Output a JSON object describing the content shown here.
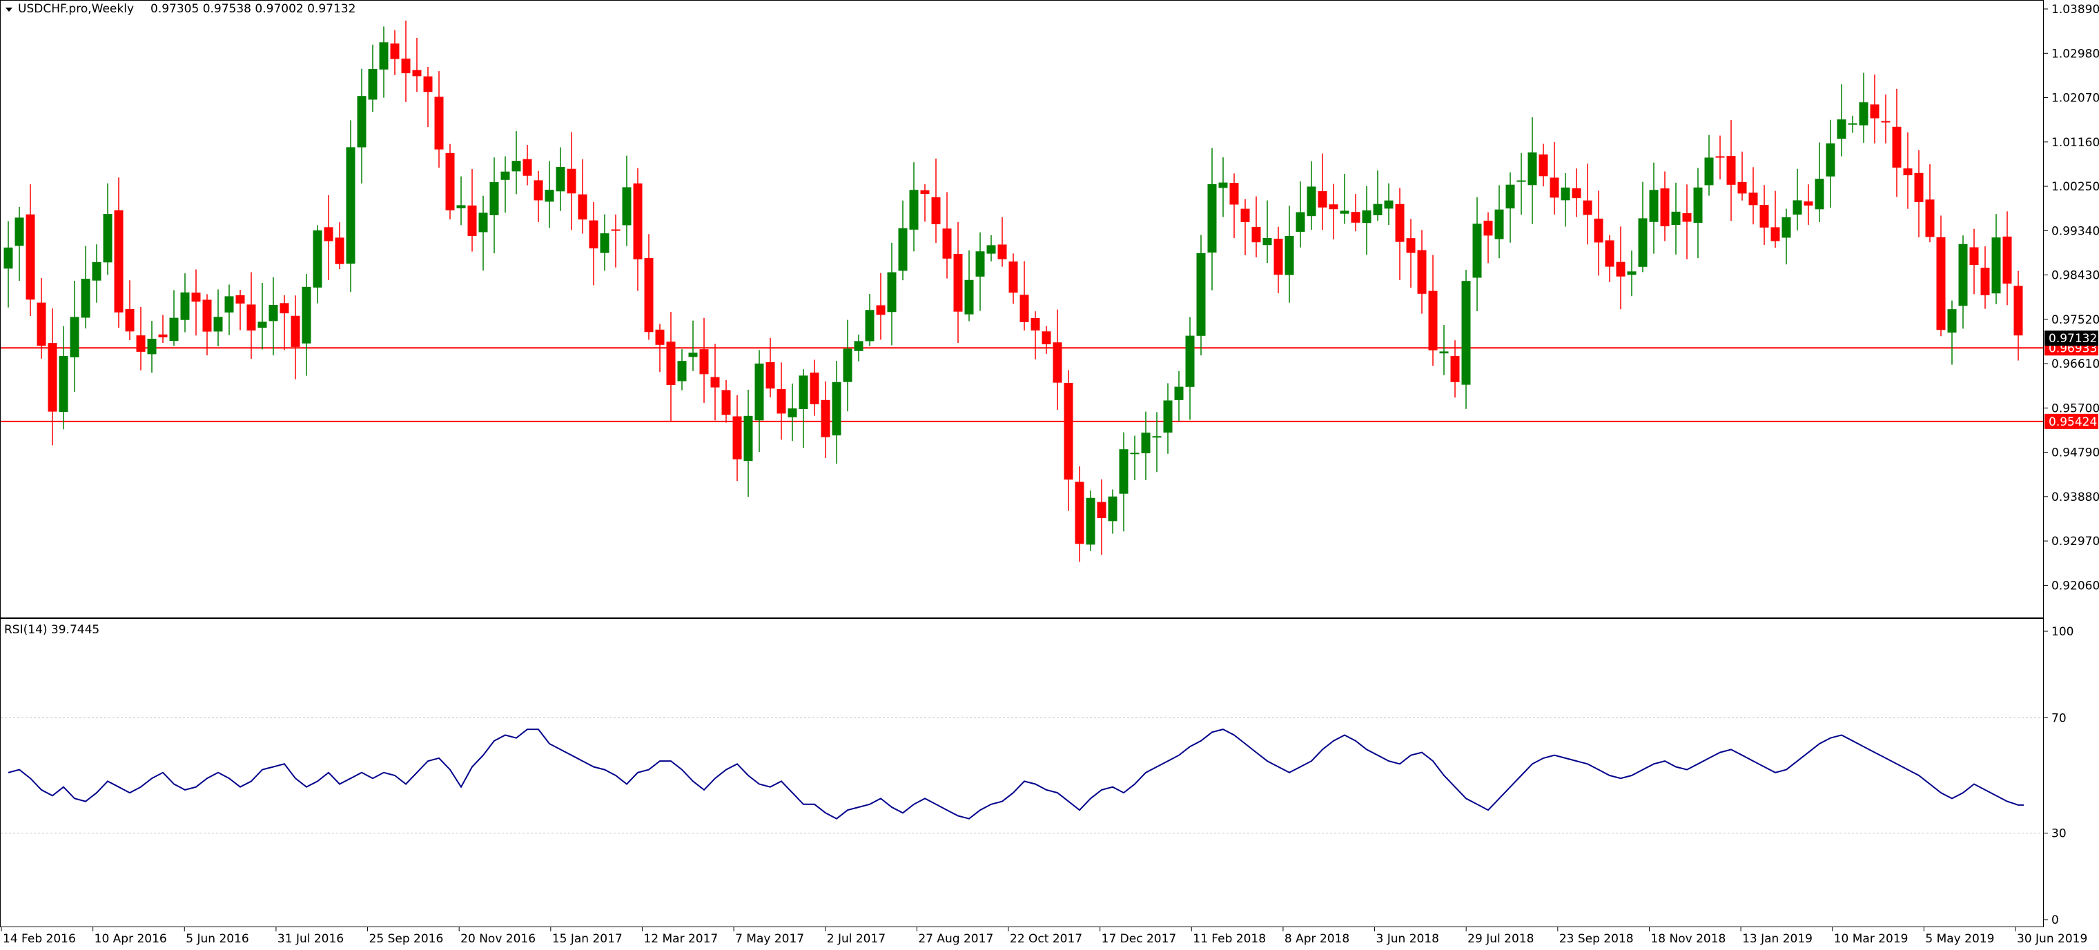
{
  "chart_data": [
    {
      "type": "candlestick",
      "header": {
        "symbol_label": "USDCHF.pro,Weekly",
        "ohlc_label": "0.97305 0.97538 0.97002 0.97132"
      },
      "ylim": [
        0.914,
        1.0406
      ],
      "y_ticks": [
        "1.03890",
        "1.02980",
        "1.02070",
        "1.01160",
        "1.00250",
        "0.99340",
        "0.98430",
        "0.97520",
        "0.96610",
        "0.95700",
        "0.94790",
        "0.93880",
        "0.92970",
        "0.92060"
      ],
      "x_ticks": [
        "14 Feb 2016",
        "10 Apr 2016",
        "5 Jun 2016",
        "31 Jul 2016",
        "25 Sep 2016",
        "20 Nov 2016",
        "15 Jan 2017",
        "12 Mar 2017",
        "7 May 2017",
        "2 Jul 2017",
        "27 Aug 2017",
        "22 Oct 2017",
        "17 Dec 2017",
        "11 Feb 2018",
        "8 Apr 2018",
        "3 Jun 2018",
        "29 Jul 2018",
        "23 Sep 2018",
        "18 Nov 2018",
        "13 Jan 2019",
        "10 Mar 2019",
        "5 May 2019",
        "30 Jun 2019"
      ],
      "levels": [
        {
          "label": "0.96933",
          "value": 0.96933,
          "color": "#ff0000"
        },
        {
          "label": "0.95424",
          "value": 0.95424,
          "color": "#ff0000"
        }
      ],
      "current_price": {
        "label": "0.97132",
        "value": 0.97132
      },
      "colors": {
        "bull": "#008000",
        "bear": "#ff0000",
        "wick_bull": "#008000",
        "wick_bear": "#ff0000"
      },
      "close_points": [
        [
          0,
          0.989
        ],
        [
          2,
          0.995
        ],
        [
          4,
          0.978
        ],
        [
          8,
          0.958
        ],
        [
          10,
          0.97
        ],
        [
          14,
          0.984
        ],
        [
          18,
          0.994
        ],
        [
          20,
          0.977
        ],
        [
          24,
          0.968
        ],
        [
          28,
          0.972
        ],
        [
          32,
          0.982
        ],
        [
          36,
          0.972
        ],
        [
          40,
          0.98
        ],
        [
          44,
          0.972
        ],
        [
          48,
          0.98
        ],
        [
          52,
          0.972
        ],
        [
          56,
          0.994
        ],
        [
          60,
          0.986
        ],
        [
          62,
          1.012
        ],
        [
          64,
          1.02
        ],
        [
          68,
          1.031
        ],
        [
          72,
          1.028
        ],
        [
          76,
          1.022
        ],
        [
          80,
          1.0
        ],
        [
          84,
          0.994
        ],
        [
          88,
          1.005
        ],
        [
          92,
          1.009
        ],
        [
          96,
          0.998
        ],
        [
          100,
          1.006
        ],
        [
          104,
          0.995
        ],
        [
          108,
          0.99
        ],
        [
          112,
          1.001
        ],
        [
          116,
          0.972
        ],
        [
          120,
          0.963
        ],
        [
          124,
          0.97
        ],
        [
          128,
          0.96
        ],
        [
          132,
          0.948
        ],
        [
          136,
          0.968
        ],
        [
          140,
          0.954
        ],
        [
          144,
          0.962
        ],
        [
          148,
          0.95
        ],
        [
          152,
          0.969
        ],
        [
          156,
          0.975
        ],
        [
          160,
          0.982
        ],
        [
          164,
          1.0
        ],
        [
          168,
          0.997
        ],
        [
          170,
          0.988
        ],
        [
          172,
          0.976
        ],
        [
          176,
          0.992
        ],
        [
          180,
          0.987
        ],
        [
          184,
          0.977
        ],
        [
          188,
          0.969
        ],
        [
          190,
          0.964
        ],
        [
          192,
          0.944
        ],
        [
          194,
          0.932
        ],
        [
          196,
          0.939
        ],
        [
          198,
          0.932
        ],
        [
          200,
          0.937
        ],
        [
          202,
          0.946
        ],
        [
          206,
          0.952
        ],
        [
          208,
          0.951
        ],
        [
          210,
          0.957
        ],
        [
          214,
          0.97
        ],
        [
          216,
          0.986
        ],
        [
          218,
          1.001
        ],
        [
          222,
          1.0
        ],
        [
          226,
          0.993
        ],
        [
          230,
          0.986
        ],
        [
          232,
          0.991
        ],
        [
          236,
          1.001
        ],
        [
          240,
          0.996
        ],
        [
          244,
          0.998
        ],
        [
          250,
          0.999
        ],
        [
          256,
          0.983
        ],
        [
          258,
          0.97
        ],
        [
          260,
          0.968
        ],
        [
          262,
          0.962
        ],
        [
          264,
          0.981
        ],
        [
          266,
          0.993
        ],
        [
          270,
          0.996
        ],
        [
          274,
          1.005
        ],
        [
          276,
          1.008
        ],
        [
          278,
          1.003
        ],
        [
          282,
          1.001
        ],
        [
          286,
          0.998
        ],
        [
          290,
          0.986
        ],
        [
          292,
          0.984
        ],
        [
          294,
          0.987
        ],
        [
          298,
          0.999
        ],
        [
          300,
          0.992
        ],
        [
          304,
          0.997
        ],
        [
          308,
          1.006
        ],
        [
          312,
          1.005
        ],
        [
          316,
          1.0
        ],
        [
          320,
          0.993
        ],
        [
          324,
          0.997
        ],
        [
          328,
          1.002
        ],
        [
          332,
          1.016
        ],
        [
          336,
          1.018
        ],
        [
          340,
          1.013
        ],
        [
          344,
          1.003
        ],
        [
          348,
          0.991
        ],
        [
          350,
          0.976
        ],
        [
          352,
          0.977
        ],
        [
          354,
          0.992
        ],
        [
          356,
          0.987
        ],
        [
          358,
          0.983
        ],
        [
          360,
          0.992
        ],
        [
          362,
          0.984
        ],
        [
          364,
          0.973
        ],
        [
          365,
          0.97132
        ]
      ]
    },
    {
      "type": "line",
      "header": {
        "indicator_label": "RSI(14) 39.7445"
      },
      "ylim": [
        0,
        100
      ],
      "y_ticks": [
        "100",
        "70",
        "30",
        "0"
      ],
      "levels": [
        70,
        30
      ],
      "line_color": "#00008b",
      "points": [
        [
          0,
          51
        ],
        [
          2,
          52
        ],
        [
          4,
          49
        ],
        [
          6,
          45
        ],
        [
          8,
          43
        ],
        [
          10,
          46
        ],
        [
          12,
          42
        ],
        [
          14,
          41
        ],
        [
          16,
          44
        ],
        [
          18,
          48
        ],
        [
          20,
          46
        ],
        [
          22,
          44
        ],
        [
          24,
          46
        ],
        [
          26,
          49
        ],
        [
          28,
          51
        ],
        [
          30,
          47
        ],
        [
          32,
          45
        ],
        [
          34,
          46
        ],
        [
          36,
          49
        ],
        [
          38,
          51
        ],
        [
          40,
          49
        ],
        [
          42,
          46
        ],
        [
          44,
          48
        ],
        [
          46,
          52
        ],
        [
          48,
          53
        ],
        [
          50,
          54
        ],
        [
          52,
          49
        ],
        [
          54,
          46
        ],
        [
          56,
          48
        ],
        [
          58,
          51
        ],
        [
          60,
          47
        ],
        [
          62,
          49
        ],
        [
          64,
          51
        ],
        [
          66,
          49
        ],
        [
          68,
          51
        ],
        [
          70,
          50
        ],
        [
          72,
          47
        ],
        [
          74,
          51
        ],
        [
          76,
          55
        ],
        [
          78,
          56
        ],
        [
          80,
          52
        ],
        [
          82,
          46
        ],
        [
          84,
          53
        ],
        [
          86,
          57
        ],
        [
          88,
          62
        ],
        [
          90,
          64
        ],
        [
          92,
          63
        ],
        [
          94,
          66
        ],
        [
          96,
          66
        ],
        [
          98,
          61
        ],
        [
          100,
          59
        ],
        [
          102,
          57
        ],
        [
          104,
          55
        ],
        [
          106,
          53
        ],
        [
          108,
          52
        ],
        [
          110,
          50
        ],
        [
          112,
          47
        ],
        [
          114,
          51
        ],
        [
          116,
          52
        ],
        [
          118,
          55
        ],
        [
          120,
          55
        ],
        [
          122,
          52
        ],
        [
          124,
          48
        ],
        [
          126,
          45
        ],
        [
          128,
          49
        ],
        [
          130,
          52
        ],
        [
          132,
          54
        ],
        [
          134,
          50
        ],
        [
          136,
          47
        ],
        [
          138,
          46
        ],
        [
          140,
          48
        ],
        [
          142,
          44
        ],
        [
          144,
          40
        ],
        [
          146,
          40
        ],
        [
          148,
          37
        ],
        [
          150,
          35
        ],
        [
          152,
          38
        ],
        [
          154,
          39
        ],
        [
          156,
          40
        ],
        [
          158,
          42
        ],
        [
          160,
          39
        ],
        [
          162,
          37
        ],
        [
          164,
          40
        ],
        [
          166,
          42
        ],
        [
          168,
          40
        ],
        [
          170,
          38
        ],
        [
          172,
          36
        ],
        [
          174,
          35
        ],
        [
          176,
          38
        ],
        [
          178,
          40
        ],
        [
          180,
          41
        ],
        [
          182,
          44
        ],
        [
          184,
          48
        ],
        [
          186,
          47
        ],
        [
          188,
          45
        ],
        [
          190,
          44
        ],
        [
          192,
          41
        ],
        [
          194,
          38
        ],
        [
          196,
          42
        ],
        [
          198,
          45
        ],
        [
          200,
          46
        ],
        [
          202,
          44
        ],
        [
          204,
          47
        ],
        [
          206,
          51
        ],
        [
          208,
          53
        ],
        [
          210,
          55
        ],
        [
          212,
          57
        ],
        [
          214,
          60
        ],
        [
          216,
          62
        ],
        [
          218,
          65
        ],
        [
          220,
          66
        ],
        [
          222,
          64
        ],
        [
          224,
          61
        ],
        [
          226,
          58
        ],
        [
          228,
          55
        ],
        [
          230,
          53
        ],
        [
          232,
          51
        ],
        [
          234,
          53
        ],
        [
          236,
          55
        ],
        [
          238,
          59
        ],
        [
          240,
          62
        ],
        [
          242,
          64
        ],
        [
          244,
          62
        ],
        [
          246,
          59
        ],
        [
          248,
          57
        ],
        [
          250,
          55
        ],
        [
          252,
          54
        ],
        [
          254,
          57
        ],
        [
          256,
          58
        ],
        [
          258,
          55
        ],
        [
          260,
          50
        ],
        [
          262,
          46
        ],
        [
          264,
          42
        ],
        [
          266,
          40
        ],
        [
          268,
          38
        ],
        [
          270,
          42
        ],
        [
          272,
          46
        ],
        [
          274,
          50
        ],
        [
          276,
          54
        ],
        [
          278,
          56
        ],
        [
          280,
          57
        ],
        [
          282,
          56
        ],
        [
          284,
          55
        ],
        [
          286,
          54
        ],
        [
          288,
          52
        ],
        [
          290,
          50
        ],
        [
          292,
          49
        ],
        [
          294,
          50
        ],
        [
          296,
          52
        ],
        [
          298,
          54
        ],
        [
          300,
          55
        ],
        [
          302,
          53
        ],
        [
          304,
          52
        ],
        [
          306,
          54
        ],
        [
          308,
          56
        ],
        [
          310,
          58
        ],
        [
          312,
          59
        ],
        [
          314,
          57
        ],
        [
          316,
          55
        ],
        [
          318,
          53
        ],
        [
          320,
          51
        ],
        [
          322,
          52
        ],
        [
          324,
          55
        ],
        [
          326,
          58
        ],
        [
          328,
          61
        ],
        [
          330,
          63
        ],
        [
          332,
          64
        ],
        [
          334,
          62
        ],
        [
          336,
          60
        ],
        [
          338,
          58
        ],
        [
          340,
          56
        ],
        [
          342,
          54
        ],
        [
          344,
          52
        ],
        [
          346,
          50
        ],
        [
          348,
          47
        ],
        [
          350,
          44
        ],
        [
          352,
          42
        ],
        [
          354,
          44
        ],
        [
          356,
          47
        ],
        [
          358,
          45
        ],
        [
          360,
          43
        ],
        [
          362,
          41
        ],
        [
          364,
          39.7445
        ],
        [
          365,
          39.7445
        ]
      ]
    }
  ]
}
